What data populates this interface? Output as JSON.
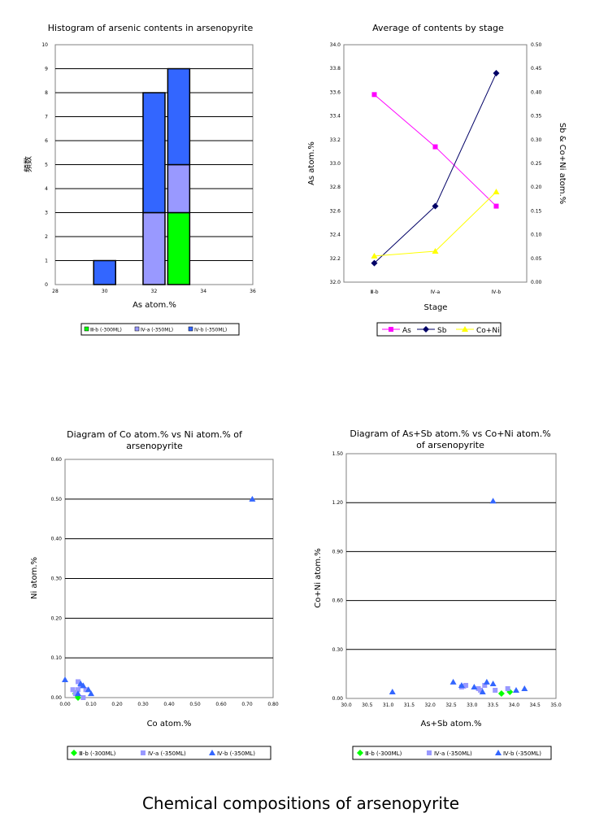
{
  "page": {
    "caption": "Chemical compositions of arsenopyrite"
  },
  "chart_data": [
    {
      "id": "histogram",
      "type": "bar",
      "stacked": true,
      "title": "Histogram of arsenic contents in arsenopyrite",
      "xlabel": "As atom.%",
      "ylabel": "頻数",
      "categories": [
        "30",
        "32",
        "33"
      ],
      "x_ticks": [
        "28",
        "30",
        "32",
        "34",
        "36"
      ],
      "y_ticks": [
        "0",
        "1",
        "2",
        "3",
        "4",
        "5",
        "6",
        "7",
        "8",
        "9",
        "10"
      ],
      "xlim": [
        28,
        36
      ],
      "ylim": [
        0,
        10
      ],
      "series": [
        {
          "name": "Ⅲ-b (-300ML)",
          "color": "#00ff00",
          "values": [
            0,
            0,
            3
          ]
        },
        {
          "name": "Ⅳ-a (-350ML)",
          "color": "#9999ff",
          "values": [
            0,
            3,
            2
          ]
        },
        {
          "name": "Ⅳ-b (-350ML)",
          "color": "#3366ff",
          "values": [
            1,
            5,
            4
          ]
        }
      ],
      "grid": "horizontal",
      "legend": "bottom"
    },
    {
      "id": "average",
      "type": "line",
      "title": "Average of contents by stage",
      "xlabel": "Stage",
      "ylabel": "As atom.%",
      "y2label": "Sb & Co+Ni atom.%",
      "categories": [
        "Ⅲ-b",
        "Ⅳ-a",
        "Ⅳ-b"
      ],
      "y_ticks": [
        "32.0",
        "32.2",
        "32.4",
        "32.6",
        "32.8",
        "33.0",
        "33.2",
        "33.4",
        "33.6",
        "33.8",
        "34.0"
      ],
      "y2_ticks": [
        "0.00",
        "0.05",
        "0.10",
        "0.15",
        "0.20",
        "0.25",
        "0.30",
        "0.35",
        "0.40",
        "0.45",
        "0.50"
      ],
      "ylim": [
        32.0,
        34.0
      ],
      "y2lim": [
        0,
        0.5
      ],
      "series": [
        {
          "name": "As",
          "axis": "left",
          "color": "#ff00ff",
          "marker": "square",
          "values": [
            33.58,
            33.14,
            32.64
          ]
        },
        {
          "name": "Sb",
          "axis": "right",
          "color": "#000066",
          "marker": "diamond",
          "values": [
            0.04,
            0.16,
            0.44
          ]
        },
        {
          "name": "Co+Ni",
          "axis": "right",
          "color": "#ffff00",
          "marker": "triangle",
          "values": [
            0.055,
            0.065,
            0.19
          ]
        }
      ],
      "grid": "none",
      "legend": "bottom"
    },
    {
      "id": "co-ni",
      "type": "scatter",
      "title": "Diagram of Co atom.% vs Ni atom.% of arsenopyrite",
      "xlabel": "Co atom.%",
      "ylabel": "Ni atom.%",
      "x_ticks": [
        "0.00",
        "0.10",
        "0.20",
        "0.30",
        "0.40",
        "0.50",
        "0.60",
        "0.70",
        "0.80"
      ],
      "y_ticks": [
        "0.00",
        "0.10",
        "0.20",
        "0.30",
        "0.40",
        "0.50",
        "0.60"
      ],
      "xlim": [
        0,
        0.8
      ],
      "ylim": [
        0,
        0.6
      ],
      "series": [
        {
          "name": "Ⅲ-b (-300ML)",
          "color": "#00ff00",
          "marker": "diamond",
          "points": [
            [
              0.04,
              0.01
            ],
            [
              0.05,
              0.0
            ]
          ]
        },
        {
          "name": "Ⅳ-a (-350ML)",
          "color": "#9999ff",
          "marker": "square",
          "points": [
            [
              0.03,
              0.02
            ],
            [
              0.05,
              0.04
            ],
            [
              0.06,
              0.03
            ],
            [
              0.04,
              0.01
            ],
            [
              0.07,
              0.0
            ],
            [
              0.08,
              0.02
            ],
            [
              0.05,
              0.02
            ]
          ]
        },
        {
          "name": "Ⅳ-b (-350ML)",
          "color": "#3366ff",
          "marker": "triangle",
          "points": [
            [
              0.0,
              0.045
            ],
            [
              0.05,
              0.01
            ],
            [
              0.06,
              0.035
            ],
            [
              0.07,
              0.03
            ],
            [
              0.09,
              0.02
            ],
            [
              0.1,
              0.01
            ],
            [
              0.72,
              0.5
            ]
          ]
        }
      ],
      "grid": "horizontal",
      "legend": "bottom"
    },
    {
      "id": "assb-coni",
      "type": "scatter",
      "title": "Diagram of As+Sb atom.% vs Co+Ni atom.% of arsenopyrite",
      "xlabel": "As+Sb atom.%",
      "ylabel": "Co+Ni atom.%",
      "x_ticks": [
        "30.0",
        "30.5",
        "31.0",
        "31.5",
        "32.0",
        "32.5",
        "33.0",
        "33.5",
        "34.0",
        "34.5",
        "35.0"
      ],
      "y_ticks": [
        "0.00",
        "0.30",
        "0.60",
        "0.90",
        "1.20",
        "1.50"
      ],
      "xlim": [
        30,
        35
      ],
      "ylim": [
        0,
        1.5
      ],
      "series": [
        {
          "name": "Ⅲ-b (-300ML)",
          "color": "#00ff00",
          "marker": "diamond",
          "points": [
            [
              33.7,
              0.03
            ],
            [
              33.9,
              0.04
            ]
          ]
        },
        {
          "name": "Ⅳ-a (-350ML)",
          "color": "#9999ff",
          "marker": "square",
          "points": [
            [
              32.75,
              0.07
            ],
            [
              32.85,
              0.08
            ],
            [
              33.15,
              0.06
            ],
            [
              33.3,
              0.08
            ],
            [
              33.55,
              0.05
            ],
            [
              33.85,
              0.06
            ],
            [
              32.8,
              0.075
            ],
            [
              33.2,
              0.05
            ]
          ]
        },
        {
          "name": "Ⅳ-b (-350ML)",
          "color": "#3366ff",
          "marker": "triangle",
          "points": [
            [
              31.1,
              0.04
            ],
            [
              32.55,
              0.1
            ],
            [
              32.75,
              0.08
            ],
            [
              33.05,
              0.07
            ],
            [
              33.25,
              0.04
            ],
            [
              33.35,
              0.1
            ],
            [
              33.5,
              0.09
            ],
            [
              34.05,
              0.05
            ],
            [
              34.25,
              0.06
            ],
            [
              33.5,
              1.21
            ]
          ]
        }
      ],
      "grid": "horizontal",
      "legend": "bottom"
    }
  ]
}
